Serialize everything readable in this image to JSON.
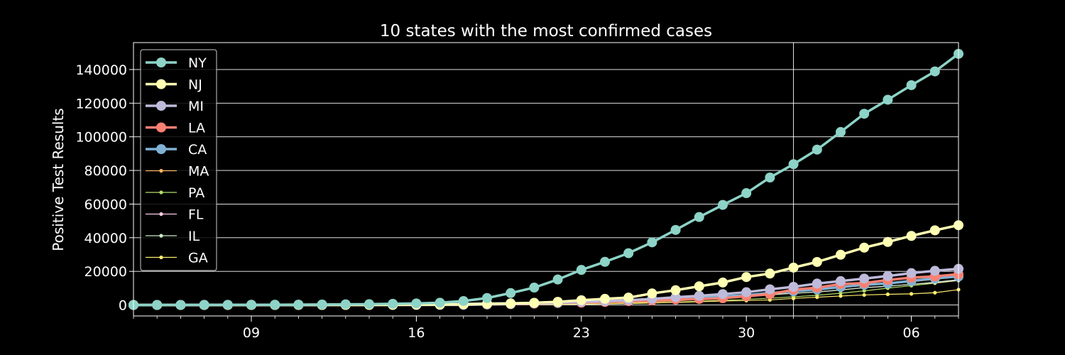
{
  "chart_data": {
    "type": "line",
    "title": "10 states with the most confirmed cases",
    "xlabel": "",
    "ylabel": "Positive Test Results",
    "x_start": "2020-03-04",
    "x_end": "2020-04-08",
    "xlim": [
      "2020-03-04",
      "2020-04-08"
    ],
    "x_ticks": [
      {
        "date": "2020-03-09",
        "label": "09"
      },
      {
        "date": "2020-03-16",
        "label": "16"
      },
      {
        "date": "2020-03-23",
        "label": "23"
      },
      {
        "date": "2020-03-30",
        "label": "30"
      },
      {
        "date": "2020-04-06",
        "label": "06"
      }
    ],
    "x_minor_every_days": 1,
    "ylim": [
      -6500,
      156000
    ],
    "y_ticks": [
      0,
      20000,
      40000,
      60000,
      80000,
      100000,
      120000,
      140000
    ],
    "grid": true,
    "extra_vgrid_date": "2020-04-01",
    "legend_position": "top-left",
    "background": "#000000",
    "series": [
      {
        "name": "NY",
        "color": "#8dd3c7",
        "style": "thick",
        "values": [
          11,
          22,
          33,
          76,
          105,
          142,
          173,
          216,
          325,
          421,
          524,
          729,
          950,
          1374,
          2382,
          4152,
          7102,
          10356,
          15168,
          20875,
          25665,
          30811,
          37258,
          44635,
          52318,
          59513,
          66497,
          75795,
          83712,
          92381,
          102863,
          113704,
          122031,
          130689,
          138863,
          149316
        ]
      },
      {
        "name": "NJ",
        "color": "#ffffb3",
        "style": "thick",
        "values": [
          0,
          1,
          2,
          4,
          6,
          11,
          15,
          23,
          29,
          50,
          69,
          98,
          178,
          267,
          427,
          742,
          890,
          1327,
          1914,
          2844,
          3675,
          4402,
          6876,
          8825,
          11124,
          13386,
          16636,
          18696,
          22255,
          25590,
          29895,
          34124,
          37505,
          41090,
          44416,
          47437
        ]
      },
      {
        "name": "MI",
        "color": "#bebada",
        "style": "thick",
        "values": [
          0,
          0,
          0,
          0,
          0,
          0,
          0,
          2,
          12,
          25,
          33,
          53,
          65,
          80,
          110,
          336,
          549,
          1035,
          1328,
          1791,
          2294,
          2856,
          3657,
          4650,
          5486,
          6498,
          7615,
          9334,
          10791,
          12744,
          14225,
          15718,
          17221,
          18970,
          20346,
          21504
        ]
      },
      {
        "name": "LA",
        "color": "#fb8072",
        "style": "thick",
        "values": [
          0,
          0,
          0,
          0,
          0,
          1,
          6,
          13,
          19,
          36,
          77,
          91,
          136,
          196,
          280,
          392,
          537,
          837,
          1172,
          1388,
          1795,
          2305,
          2746,
          3315,
          3540,
          4025,
          5237,
          6424,
          9150,
          10297,
          12496,
          13010,
          14867,
          16284,
          17030,
          18283
        ]
      },
      {
        "name": "CA",
        "color": "#80b1d3",
        "style": "thick",
        "values": [
          53,
          60,
          69,
          88,
          114,
          133,
          157,
          177,
          198,
          252,
          320,
          381,
          478,
          588,
          698,
          875,
          1063,
          1279,
          1536,
          1733,
          2102,
          2355,
          3006,
          3879,
          4643,
          5095,
          5852,
          7138,
          8155,
          9191,
          10701,
          12026,
          12837,
          14336,
          15865,
          16957
        ]
      },
      {
        "name": "MA",
        "color": "#fdb462",
        "style": "thin",
        "values": [
          1,
          2,
          2,
          7,
          13,
          28,
          41,
          92,
          95,
          108,
          123,
          138,
          164,
          197,
          218,
          256,
          328,
          413,
          525,
          646,
          777,
          1159,
          1838,
          2417,
          3240,
          4257,
          5752,
          6620,
          7738,
          8966,
          10402,
          11736,
          12500,
          13837,
          15202,
          16790
        ]
      },
      {
        "name": "PA",
        "color": "#b3de69",
        "style": "thin",
        "values": [
          0,
          0,
          2,
          4,
          6,
          7,
          10,
          12,
          16,
          22,
          33,
          47,
          63,
          76,
          96,
          133,
          185,
          268,
          371,
          479,
          644,
          851,
          1127,
          1687,
          2218,
          2751,
          3394,
          4087,
          4843,
          5805,
          7016,
          8420,
          10017,
          11510,
          12980,
          14559
        ]
      },
      {
        "name": "FL",
        "color": "#fccde5",
        "style": "thin",
        "values": [
          2,
          3,
          7,
          9,
          11,
          12,
          14,
          18,
          26,
          35,
          50,
          77,
          100,
          155,
          216,
          314,
          432,
          563,
          830,
          1227,
          1412,
          1682,
          2355,
          2900,
          3763,
          4246,
          5473,
          6338,
          6955,
          7773,
          9008,
          10268,
          11111,
          12350,
          13324,
          14747
        ]
      },
      {
        "name": "IL",
        "color": "#ccebc5",
        "style": "thin",
        "values": [
          4,
          5,
          6,
          7,
          7,
          11,
          19,
          25,
          32,
          46,
          64,
          93,
          105,
          160,
          288,
          422,
          585,
          753,
          1049,
          1285,
          1535,
          1865,
          2538,
          3026,
          3491,
          4596,
          5057,
          5994,
          6980,
          7695,
          8904,
          10357,
          11256,
          12262,
          13549,
          15078
        ]
      },
      {
        "name": "GA",
        "color": "#ffed6f",
        "style": "thin",
        "values": [
          0,
          0,
          2,
          3,
          5,
          6,
          11,
          17,
          22,
          31,
          42,
          66,
          99,
          121,
          146,
          197,
          287,
          420,
          507,
          600,
          772,
          1026,
          1247,
          1525,
          2000,
          2366,
          2651,
          3032,
          3929,
          4638,
          5348,
          5967,
          6383,
          6647,
          7314,
          9156
        ]
      }
    ]
  }
}
